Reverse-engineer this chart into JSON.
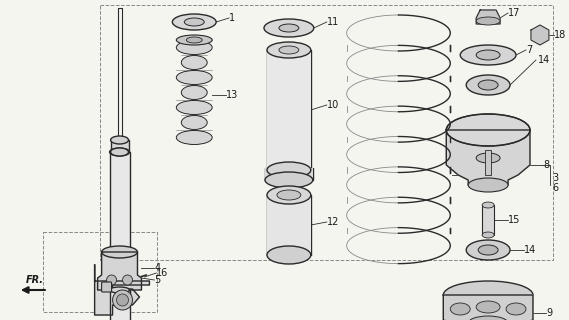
{
  "bg_color": "#f5f5f0",
  "line_color": "#2a2a2a",
  "label_color": "#1a1a1a",
  "lw_main": 1.0,
  "lw_thin": 0.6,
  "fs_label": 7.0
}
